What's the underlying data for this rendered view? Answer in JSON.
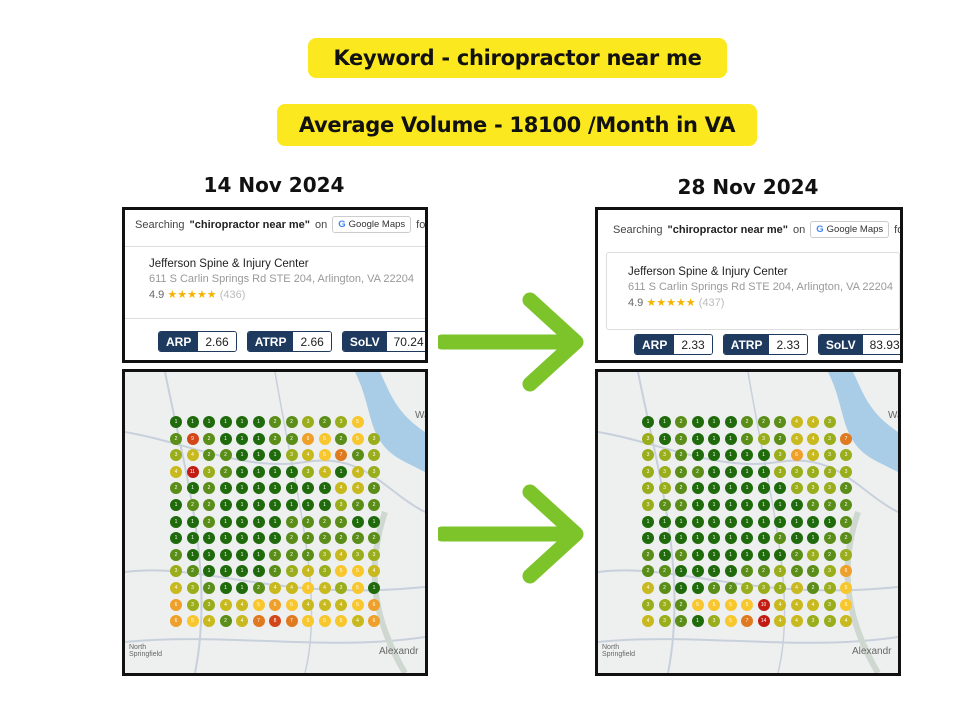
{
  "header": {
    "keyword": "Keyword - chiropractor near me",
    "volume": "Average Volume - 18100 /Month in VA"
  },
  "accent": "#fce81e",
  "arrow_color": "#7dc42a",
  "rank_colors": {
    "1": "#1f6b0c",
    "2": "#5b8e18",
    "3": "#9aae1c",
    "4": "#c8b91e",
    "5": "#f8c72e",
    "6": "#eea02a",
    "7": "#e07a20",
    "8": "#d2461a",
    "10": "#c21c12"
  },
  "panels": [
    {
      "date": "14 Nov 2024",
      "search": {
        "prefix": "Searching",
        "query": "\"chiropractor near me\"",
        "on": "on",
        "platform": "Google Maps",
        "suffix": "for:"
      },
      "business": {
        "name": "Jefferson Spine & Injury Center",
        "address": "611 S Carlin Springs Rd STE 204, Arlington, VA 22204",
        "rating": "4.9",
        "stars": "★★★★★",
        "reviews": "(436)"
      },
      "metrics": [
        {
          "label": "ARP",
          "value": "2.66"
        },
        {
          "label": "ATRP",
          "value": "2.66"
        },
        {
          "label": "SoLV",
          "value": "70.24"
        }
      ],
      "map_labels": [
        "Wa",
        "Alexandr",
        "North Springfield"
      ],
      "grid": [
        [
          1,
          1,
          1,
          1,
          1,
          1,
          2,
          2,
          3,
          2,
          3,
          5,
          null
        ],
        [
          2,
          9,
          2,
          1,
          1,
          1,
          2,
          2,
          6,
          5,
          2,
          5,
          3
        ],
        [
          3,
          4,
          2,
          2,
          1,
          1,
          1,
          3,
          4,
          5,
          7,
          2,
          3
        ],
        [
          4,
          11,
          3,
          2,
          1,
          1,
          1,
          1,
          3,
          4,
          1,
          4,
          3
        ],
        [
          2,
          1,
          2,
          1,
          1,
          1,
          1,
          1,
          1,
          1,
          4,
          4,
          2
        ],
        [
          1,
          2,
          2,
          1,
          1,
          1,
          1,
          1,
          1,
          1,
          3,
          2,
          2
        ],
        [
          1,
          1,
          2,
          1,
          1,
          1,
          1,
          2,
          2,
          2,
          2,
          1,
          1
        ],
        [
          1,
          1,
          1,
          1,
          1,
          1,
          1,
          2,
          2,
          2,
          2,
          2,
          2
        ],
        [
          2,
          1,
          1,
          1,
          1,
          1,
          2,
          2,
          2,
          3,
          4,
          3,
          3
        ],
        [
          3,
          2,
          1,
          1,
          1,
          1,
          2,
          3,
          4,
          3,
          5,
          5,
          4
        ],
        [
          4,
          3,
          2,
          1,
          1,
          2,
          4,
          4,
          5,
          4,
          3,
          5,
          1
        ],
        [
          6,
          3,
          3,
          4,
          4,
          5,
          6,
          5,
          4,
          4,
          4,
          5,
          6
        ],
        [
          6,
          5,
          4,
          2,
          4,
          7,
          8,
          7,
          5,
          5,
          5,
          4,
          6
        ]
      ]
    },
    {
      "date": "28 Nov 2024",
      "search": {
        "prefix": "Searching",
        "query": "\"chiropractor near me\"",
        "on": "on",
        "platform": "Google Maps",
        "suffix": "for:"
      },
      "business": {
        "name": "Jefferson Spine & Injury Center",
        "address": "611 S Carlin Springs Rd STE 204, Arlington, VA 22204",
        "rating": "4.9",
        "stars": "★★★★★",
        "reviews": "(437)"
      },
      "metrics": [
        {
          "label": "ARP",
          "value": "2.33"
        },
        {
          "label": "ATRP",
          "value": "2.33"
        },
        {
          "label": "SoLV",
          "value": "83.93"
        }
      ],
      "map_labels": [
        "Wa",
        "Alexandr",
        "North Springfield"
      ],
      "grid": [
        [
          1,
          1,
          2,
          1,
          1,
          1,
          2,
          2,
          2,
          4,
          4,
          3,
          null
        ],
        [
          3,
          1,
          2,
          1,
          1,
          1,
          2,
          3,
          2,
          4,
          4,
          3,
          7
        ],
        [
          3,
          3,
          2,
          1,
          1,
          1,
          1,
          1,
          3,
          6,
          4,
          3,
          3
        ],
        [
          3,
          3,
          2,
          2,
          1,
          1,
          1,
          1,
          3,
          3,
          3,
          3,
          3
        ],
        [
          3,
          3,
          2,
          1,
          1,
          1,
          1,
          1,
          1,
          3,
          3,
          3,
          2
        ],
        [
          3,
          2,
          2,
          1,
          1,
          1,
          1,
          1,
          1,
          1,
          2,
          2,
          2
        ],
        [
          1,
          1,
          1,
          1,
          1,
          1,
          1,
          1,
          1,
          1,
          1,
          1,
          2
        ],
        [
          1,
          1,
          1,
          1,
          1,
          1,
          1,
          1,
          2,
          1,
          1,
          2,
          2
        ],
        [
          2,
          1,
          2,
          1,
          1,
          1,
          1,
          1,
          1,
          2,
          3,
          2,
          3
        ],
        [
          2,
          2,
          1,
          1,
          1,
          1,
          2,
          2,
          3,
          2,
          2,
          3,
          6
        ],
        [
          4,
          2,
          1,
          1,
          2,
          2,
          3,
          3,
          3,
          4,
          2,
          3,
          5
        ],
        [
          3,
          3,
          2,
          5,
          5,
          5,
          5,
          10,
          4,
          4,
          4,
          3,
          5
        ],
        [
          4,
          3,
          2,
          1,
          3,
          5,
          7,
          14,
          4,
          4,
          3,
          3,
          4
        ]
      ]
    }
  ]
}
